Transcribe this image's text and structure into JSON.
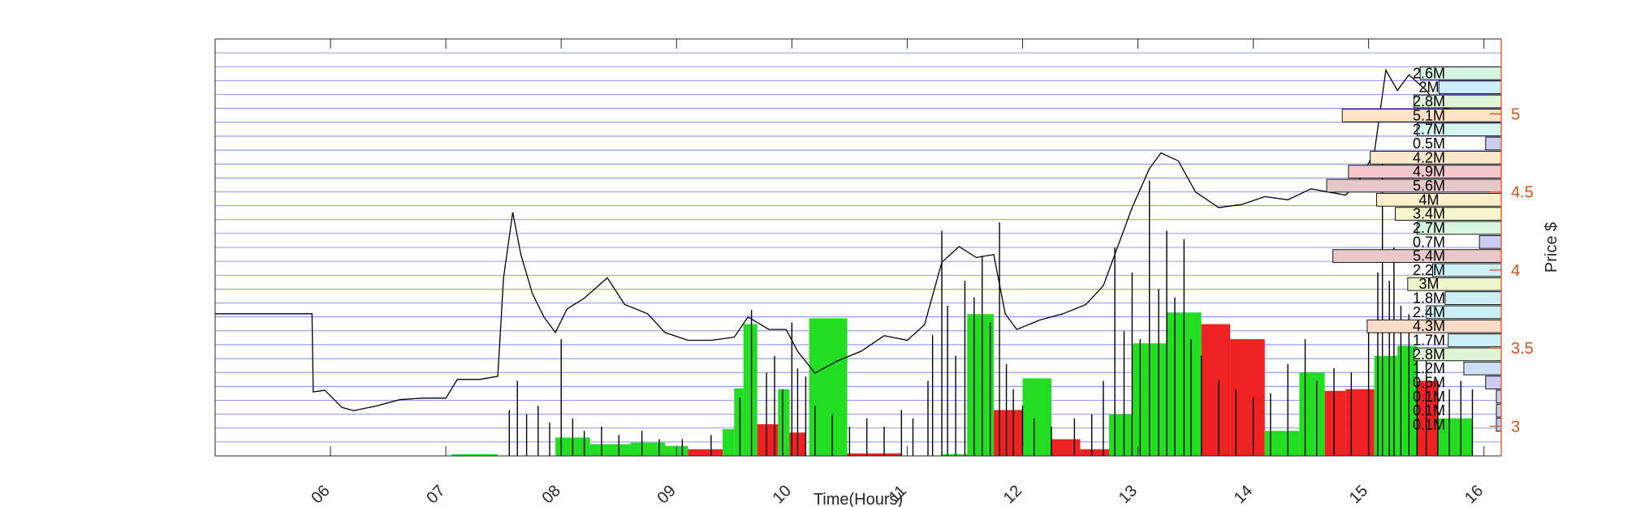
{
  "chart_data": {
    "type": "line",
    "xlabel": "Time(Hours)",
    "ylabel_right": "Price $",
    "x_ticks": [
      "06",
      "07",
      "08",
      "09",
      "10",
      "11",
      "12",
      "13",
      "14",
      "15",
      "16"
    ],
    "xlim": [
      5.0,
      16.15
    ],
    "price_ticks": [
      3,
      3.5,
      4,
      4.5,
      5
    ],
    "ylim": [
      2.81,
      5.48
    ],
    "grid": "horizontal-price-bins",
    "colors": {
      "price_line": "#000000",
      "axis_right": "#d95319",
      "gridline": "#0000cc",
      "buy_volume": "#22dd22",
      "sell_volume": "#ee2222"
    },
    "price_series": {
      "name": "",
      "points": [
        [
          5.0,
          3.72
        ],
        [
          5.84,
          3.72
        ],
        [
          5.85,
          3.22
        ],
        [
          5.95,
          3.23
        ],
        [
          6.1,
          3.12
        ],
        [
          6.2,
          3.1
        ],
        [
          6.4,
          3.13
        ],
        [
          6.6,
          3.17
        ],
        [
          6.8,
          3.18
        ],
        [
          7.0,
          3.18
        ],
        [
          7.1,
          3.3
        ],
        [
          7.3,
          3.3
        ],
        [
          7.45,
          3.32
        ],
        [
          7.5,
          3.95
        ],
        [
          7.58,
          4.37
        ],
        [
          7.65,
          4.1
        ],
        [
          7.75,
          3.85
        ],
        [
          7.85,
          3.7
        ],
        [
          7.95,
          3.6
        ],
        [
          8.05,
          3.75
        ],
        [
          8.2,
          3.82
        ],
        [
          8.4,
          3.95
        ],
        [
          8.55,
          3.78
        ],
        [
          8.75,
          3.72
        ],
        [
          8.9,
          3.6
        ],
        [
          9.1,
          3.55
        ],
        [
          9.3,
          3.55
        ],
        [
          9.5,
          3.57
        ],
        [
          9.62,
          3.7
        ],
        [
          9.8,
          3.62
        ],
        [
          9.95,
          3.62
        ],
        [
          10.05,
          3.48
        ],
        [
          10.2,
          3.34
        ],
        [
          10.4,
          3.42
        ],
        [
          10.6,
          3.48
        ],
        [
          10.8,
          3.58
        ],
        [
          11.0,
          3.55
        ],
        [
          11.15,
          3.65
        ],
        [
          11.3,
          4.05
        ],
        [
          11.45,
          4.15
        ],
        [
          11.6,
          4.08
        ],
        [
          11.75,
          4.1
        ],
        [
          11.85,
          3.72
        ],
        [
          11.95,
          3.62
        ],
        [
          12.15,
          3.68
        ],
        [
          12.35,
          3.72
        ],
        [
          12.55,
          3.78
        ],
        [
          12.7,
          3.9
        ],
        [
          12.85,
          4.2
        ],
        [
          12.95,
          4.4
        ],
        [
          13.1,
          4.65
        ],
        [
          13.2,
          4.75
        ],
        [
          13.35,
          4.7
        ],
        [
          13.5,
          4.5
        ],
        [
          13.7,
          4.4
        ],
        [
          13.9,
          4.42
        ],
        [
          14.1,
          4.47
        ],
        [
          14.3,
          4.45
        ],
        [
          14.5,
          4.52
        ],
        [
          14.65,
          4.5
        ],
        [
          14.8,
          4.48
        ],
        [
          14.9,
          4.55
        ],
        [
          15.05,
          4.75
        ],
        [
          15.15,
          5.28
        ],
        [
          15.25,
          5.15
        ],
        [
          15.35,
          5.25
        ],
        [
          15.5,
          5.15
        ],
        [
          15.6,
          5.05
        ],
        [
          15.7,
          5.03
        ],
        [
          15.8,
          5.0
        ],
        [
          15.92,
          5.0
        ]
      ]
    },
    "volume_profile": {
      "bins": [
        {
          "price": 5.26,
          "label": "2.6M",
          "value": 2.6,
          "color": "#d5f5e3"
        },
        {
          "price": 5.17,
          "label": "2M",
          "value": 2.0,
          "color": "#cceeff"
        },
        {
          "price": 5.08,
          "label": "2.8M",
          "value": 2.8,
          "color": "#dff5d8"
        },
        {
          "price": 4.99,
          "label": "5.1M",
          "value": 5.1,
          "color": "#fde3c4"
        },
        {
          "price": 4.9,
          "label": "2.7M",
          "value": 2.7,
          "color": "#d5f5f0"
        },
        {
          "price": 4.81,
          "label": "0.5M",
          "value": 0.5,
          "color": "#ccccf5"
        },
        {
          "price": 4.72,
          "label": "4.2M",
          "value": 4.2,
          "color": "#fde8cc"
        },
        {
          "price": 4.63,
          "label": "4.9M",
          "value": 4.9,
          "color": "#f5c8cc"
        },
        {
          "price": 4.54,
          "label": "5.6M",
          "value": 5.6,
          "color": "#e5c8c8"
        },
        {
          "price": 4.45,
          "label": "4M",
          "value": 4.0,
          "color": "#fdeecc"
        },
        {
          "price": 4.36,
          "label": "3.4M",
          "value": 3.4,
          "color": "#f5f5cc"
        },
        {
          "price": 4.27,
          "label": "2.7M",
          "value": 2.7,
          "color": "#d8f5dd"
        },
        {
          "price": 4.18,
          "label": "0.7M",
          "value": 0.7,
          "color": "#ccccf5"
        },
        {
          "price": 4.09,
          "label": "5.4M",
          "value": 5.4,
          "color": "#e8c8c8"
        },
        {
          "price": 4.0,
          "label": "2.2M",
          "value": 2.2,
          "color": "#ccf0f5"
        },
        {
          "price": 3.91,
          "label": "3M",
          "value": 3.0,
          "color": "#eef5cc"
        },
        {
          "price": 3.82,
          "label": "1.8M",
          "value": 1.8,
          "color": "#cceef5"
        },
        {
          "price": 3.73,
          "label": "2.4M",
          "value": 2.4,
          "color": "#ccf0f5"
        },
        {
          "price": 3.64,
          "label": "4.3M",
          "value": 4.3,
          "color": "#f8dcc8"
        },
        {
          "price": 3.55,
          "label": "1.7M",
          "value": 1.7,
          "color": "#cceef5"
        },
        {
          "price": 3.46,
          "label": "2.8M",
          "value": 2.8,
          "color": "#e0f5d5"
        },
        {
          "price": 3.37,
          "label": "1.2M",
          "value": 1.2,
          "color": "#cce0f5"
        },
        {
          "price": 3.28,
          "label": "0.5M",
          "value": 0.5,
          "color": "#ccccf5"
        },
        {
          "price": 3.19,
          "label": "0.1M",
          "value": 0.1,
          "color": "#ccccf0"
        },
        {
          "price": 3.1,
          "label": "0.1M",
          "value": 0.1,
          "color": "#ccccf0"
        },
        {
          "price": 3.01,
          "label": "0.1M",
          "value": 0.1,
          "color": "#ccccf0"
        }
      ]
    },
    "volume_blocks": [
      {
        "x0": 7.05,
        "x1": 7.45,
        "level": 0.02,
        "side": "buy"
      },
      {
        "x0": 7.95,
        "x1": 8.25,
        "level": 0.22,
        "side": "buy"
      },
      {
        "x0": 8.25,
        "x1": 8.6,
        "level": 0.14,
        "side": "buy"
      },
      {
        "x0": 8.6,
        "x1": 8.9,
        "level": 0.16,
        "side": "buy"
      },
      {
        "x0": 8.9,
        "x1": 9.1,
        "level": 0.12,
        "side": "buy"
      },
      {
        "x0": 9.1,
        "x1": 9.4,
        "level": 0.08,
        "side": "sell"
      },
      {
        "x0": 9.4,
        "x1": 9.5,
        "level": 0.32,
        "side": "buy"
      },
      {
        "x0": 9.5,
        "x1": 9.58,
        "level": 0.81,
        "side": "buy"
      },
      {
        "x0": 9.58,
        "x1": 9.7,
        "level": 1.58,
        "side": "buy"
      },
      {
        "x0": 9.7,
        "x1": 9.88,
        "level": 0.38,
        "side": "sell"
      },
      {
        "x0": 9.88,
        "x1": 9.98,
        "level": 0.8,
        "side": "buy"
      },
      {
        "x0": 9.98,
        "x1": 10.12,
        "level": 0.28,
        "side": "sell"
      },
      {
        "x0": 10.15,
        "x1": 10.48,
        "level": 1.65,
        "side": "buy"
      },
      {
        "x0": 10.48,
        "x1": 10.95,
        "level": 0.03,
        "side": "sell"
      },
      {
        "x0": 11.3,
        "x1": 11.52,
        "level": 0.02,
        "side": "buy"
      },
      {
        "x0": 11.52,
        "x1": 11.75,
        "level": 1.7,
        "side": "buy"
      },
      {
        "x0": 11.75,
        "x1": 12.0,
        "level": 0.55,
        "side": "sell"
      },
      {
        "x0": 12.0,
        "x1": 12.25,
        "level": 0.93,
        "side": "buy"
      },
      {
        "x0": 12.25,
        "x1": 12.5,
        "level": 0.2,
        "side": "sell"
      },
      {
        "x0": 12.5,
        "x1": 12.75,
        "level": 0.08,
        "side": "sell"
      },
      {
        "x0": 12.75,
        "x1": 12.95,
        "level": 0.5,
        "side": "buy"
      },
      {
        "x0": 12.95,
        "x1": 13.25,
        "level": 1.35,
        "side": "buy"
      },
      {
        "x0": 13.25,
        "x1": 13.55,
        "level": 1.72,
        "side": "buy"
      },
      {
        "x0": 13.55,
        "x1": 13.8,
        "level": 1.58,
        "side": "sell"
      },
      {
        "x0": 13.8,
        "x1": 14.1,
        "level": 1.4,
        "side": "sell"
      },
      {
        "x0": 14.1,
        "x1": 14.4,
        "level": 0.3,
        "side": "buy"
      },
      {
        "x0": 14.4,
        "x1": 14.62,
        "level": 1.0,
        "side": "buy"
      },
      {
        "x0": 14.62,
        "x1": 14.8,
        "level": 0.78,
        "side": "sell"
      },
      {
        "x0": 14.8,
        "x1": 15.05,
        "level": 0.8,
        "side": "sell"
      },
      {
        "x0": 15.05,
        "x1": 15.25,
        "level": 1.2,
        "side": "buy"
      },
      {
        "x0": 15.25,
        "x1": 15.42,
        "level": 1.32,
        "side": "buy"
      },
      {
        "x0": 15.42,
        "x1": 15.6,
        "level": 0.9,
        "side": "sell"
      },
      {
        "x0": 15.6,
        "x1": 15.9,
        "level": 0.45,
        "side": "buy"
      }
    ],
    "volume_spikes": [
      [
        7.55,
        0.55
      ],
      [
        7.62,
        0.9
      ],
      [
        7.7,
        0.5
      ],
      [
        7.8,
        0.6
      ],
      [
        7.9,
        0.4
      ],
      [
        8.0,
        1.4
      ],
      [
        8.1,
        0.45
      ],
      [
        8.2,
        0.3
      ],
      [
        8.35,
        0.35
      ],
      [
        8.5,
        0.25
      ],
      [
        8.7,
        0.3
      ],
      [
        8.85,
        0.2
      ],
      [
        9.05,
        0.2
      ],
      [
        9.3,
        0.25
      ],
      [
        9.55,
        0.7
      ],
      [
        9.65,
        1.75
      ],
      [
        9.78,
        1.0
      ],
      [
        9.85,
        1.2
      ],
      [
        9.92,
        0.8
      ],
      [
        10.0,
        1.6
      ],
      [
        10.05,
        1.05
      ],
      [
        10.12,
        0.95
      ],
      [
        10.2,
        0.6
      ],
      [
        10.35,
        0.5
      ],
      [
        10.5,
        0.35
      ],
      [
        10.65,
        0.45
      ],
      [
        10.8,
        0.35
      ],
      [
        10.95,
        0.55
      ],
      [
        11.05,
        0.45
      ],
      [
        11.18,
        0.9
      ],
      [
        11.22,
        1.45
      ],
      [
        11.3,
        2.7
      ],
      [
        11.35,
        1.8
      ],
      [
        11.42,
        1.2
      ],
      [
        11.5,
        2.1
      ],
      [
        11.58,
        1.9
      ],
      [
        11.65,
        2.4
      ],
      [
        11.72,
        1.6
      ],
      [
        11.8,
        2.8
      ],
      [
        11.86,
        1.1
      ],
      [
        11.92,
        0.8
      ],
      [
        12.0,
        0.6
      ],
      [
        12.1,
        0.45
      ],
      [
        12.25,
        0.35
      ],
      [
        12.45,
        0.45
      ],
      [
        12.6,
        0.5
      ],
      [
        12.7,
        0.9
      ],
      [
        12.8,
        2.5
      ],
      [
        12.88,
        1.5
      ],
      [
        12.95,
        2.2
      ],
      [
        13.02,
        1.4
      ],
      [
        13.1,
        3.3
      ],
      [
        13.18,
        2.0
      ],
      [
        13.25,
        2.7
      ],
      [
        13.32,
        1.9
      ],
      [
        13.4,
        2.6
      ],
      [
        13.46,
        1.4
      ],
      [
        13.55,
        1.2
      ],
      [
        13.7,
        0.9
      ],
      [
        13.85,
        0.8
      ],
      [
        14.0,
        0.7
      ],
      [
        14.15,
        0.75
      ],
      [
        14.3,
        1.1
      ],
      [
        14.45,
        1.4
      ],
      [
        14.55,
        0.9
      ],
      [
        14.7,
        1.05
      ],
      [
        14.85,
        1.0
      ],
      [
        15.0,
        1.6
      ],
      [
        15.08,
        2.2
      ],
      [
        15.12,
        3.6
      ],
      [
        15.18,
        2.1
      ],
      [
        15.22,
        2.5
      ],
      [
        15.28,
        1.8
      ],
      [
        15.35,
        1.7
      ],
      [
        15.42,
        1.3
      ],
      [
        15.5,
        1.2
      ],
      [
        15.6,
        0.9
      ],
      [
        15.7,
        0.8
      ],
      [
        15.8,
        0.9
      ],
      [
        15.9,
        0.8
      ]
    ]
  }
}
